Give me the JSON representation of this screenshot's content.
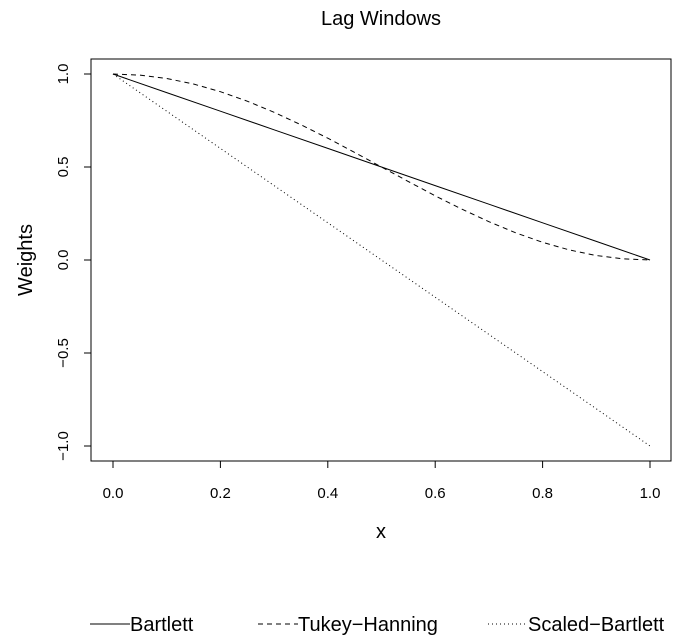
{
  "chart_data": {
    "type": "line",
    "title": "Lag Windows",
    "xlabel": "x",
    "ylabel": "Weights",
    "xlim": [
      0,
      1
    ],
    "ylim": [
      -1,
      1
    ],
    "x_ticks": [
      0.0,
      0.2,
      0.4,
      0.6,
      0.8,
      1.0
    ],
    "x_tick_labels": [
      "0.0",
      "0.2",
      "0.4",
      "0.6",
      "0.8",
      "1.0"
    ],
    "y_ticks": [
      -1.0,
      -0.5,
      0.0,
      0.5,
      1.0
    ],
    "y_tick_labels": [
      "−1.0",
      "−0.5",
      "0.0",
      "0.5",
      "1.0"
    ],
    "grid": false,
    "legend_position": "bottom",
    "series": [
      {
        "name": "Bartlett",
        "style": "solid",
        "color": "#000000",
        "x": [
          0.0,
          0.1,
          0.2,
          0.3,
          0.4,
          0.5,
          0.6,
          0.7,
          0.8,
          0.9,
          1.0
        ],
        "y": [
          1.0,
          0.9,
          0.8,
          0.7,
          0.6,
          0.5,
          0.4,
          0.3,
          0.2,
          0.1,
          0.0
        ]
      },
      {
        "name": "Tukey−Hanning",
        "style": "dashed",
        "color": "#000000",
        "x": [
          0.0,
          0.05,
          0.1,
          0.15,
          0.2,
          0.25,
          0.3,
          0.35,
          0.4,
          0.45,
          0.5,
          0.55,
          0.6,
          0.65,
          0.7,
          0.75,
          0.8,
          0.85,
          0.9,
          0.95,
          1.0
        ],
        "y": [
          1.0,
          0.994,
          0.976,
          0.946,
          0.905,
          0.854,
          0.794,
          0.727,
          0.655,
          0.578,
          0.5,
          0.422,
          0.345,
          0.273,
          0.206,
          0.146,
          0.095,
          0.054,
          0.024,
          0.006,
          0.0
        ]
      },
      {
        "name": "Scaled−Bartlett",
        "style": "dotted",
        "color": "#000000",
        "x": [
          0.0,
          0.1,
          0.2,
          0.3,
          0.4,
          0.5,
          0.6,
          0.7,
          0.8,
          0.9,
          1.0
        ],
        "y": [
          1.0,
          0.8,
          0.6,
          0.4,
          0.2,
          0.0,
          -0.2,
          -0.4,
          -0.6,
          -0.8,
          -1.0
        ]
      }
    ]
  }
}
